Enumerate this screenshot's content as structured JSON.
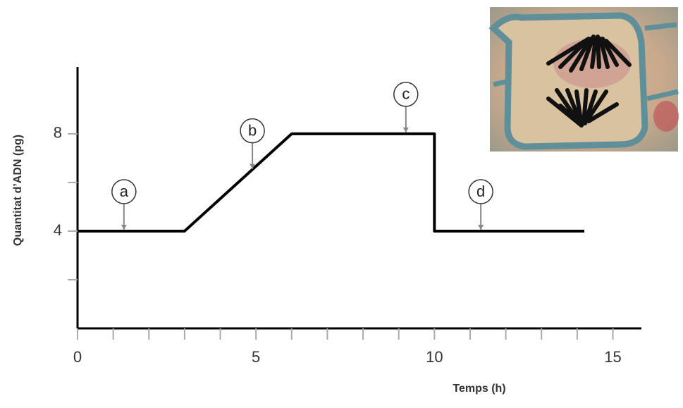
{
  "chart_data": {
    "type": "line",
    "x_label": "Temps (h)",
    "y_label": "Quantitat d’ADN (pg)",
    "x": [
      0,
      3,
      6,
      10,
      10,
      14.2
    ],
    "series": [
      {
        "color": "#000000",
        "values": [
          4,
          4,
          8,
          8,
          4,
          4
        ]
      }
    ],
    "xlim": [
      0,
      15.8
    ],
    "ylim": [
      0,
      10.75
    ],
    "xticks": [
      0,
      5,
      10,
      15
    ],
    "xminorticks": [
      1,
      2,
      3,
      4,
      6,
      7,
      8,
      9,
      11,
      12,
      13,
      14
    ],
    "yticks": [
      4,
      8
    ],
    "yminorticks": [
      2,
      6
    ],
    "annotations": [
      {
        "text": "a",
        "x": 1.3,
        "y": 4
      },
      {
        "text": "b",
        "x": 4.9,
        "y": 6.5
      },
      {
        "text": "c",
        "x": 9.2,
        "y": 8
      },
      {
        "text": "d",
        "x": 11.3,
        "y": 4
      }
    ]
  }
}
